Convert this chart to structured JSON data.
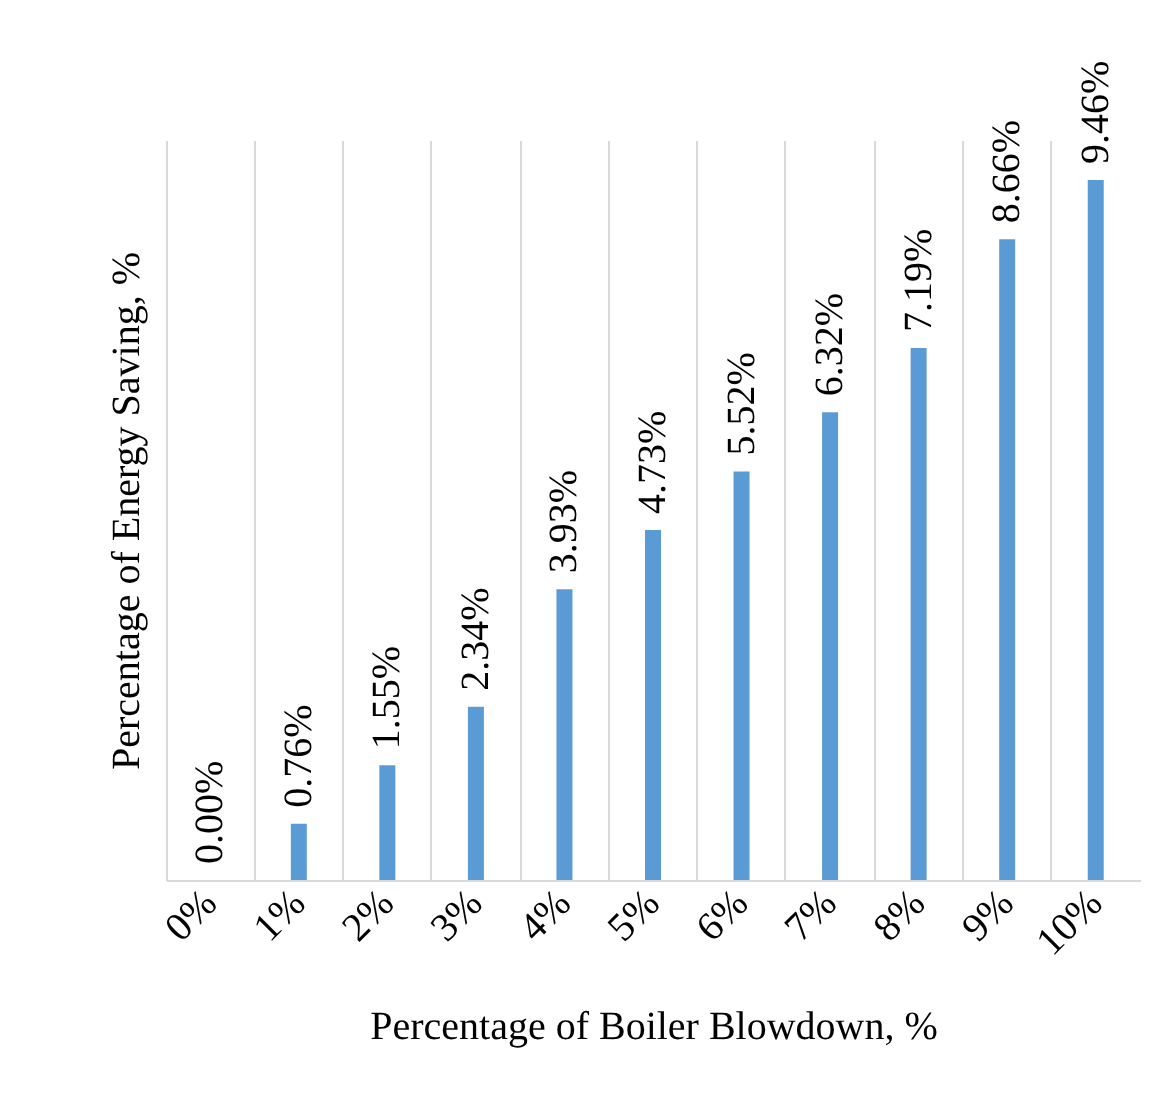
{
  "chart_data": {
    "type": "bar",
    "xlabel": "Percentage of Boiler Blowdown, %",
    "ylabel": "Percentage of Energy Saving, %",
    "categories": [
      "0%",
      "1%",
      "2%",
      "3%",
      "4%",
      "5%",
      "6%",
      "7%",
      "8%",
      "9%",
      "10%"
    ],
    "values": [
      0.0,
      0.76,
      1.55,
      2.34,
      3.93,
      4.73,
      5.52,
      6.32,
      7.19,
      8.66,
      9.46
    ],
    "value_labels": [
      "0.00%",
      "0.76%",
      "1.55%",
      "2.34%",
      "3.93%",
      "4.73%",
      "5.52%",
      "6.32%",
      "7.19%",
      "8.66%",
      "9.46%"
    ],
    "color": "#5b9bd5",
    "grid": "x",
    "tick_labels": "x"
  }
}
